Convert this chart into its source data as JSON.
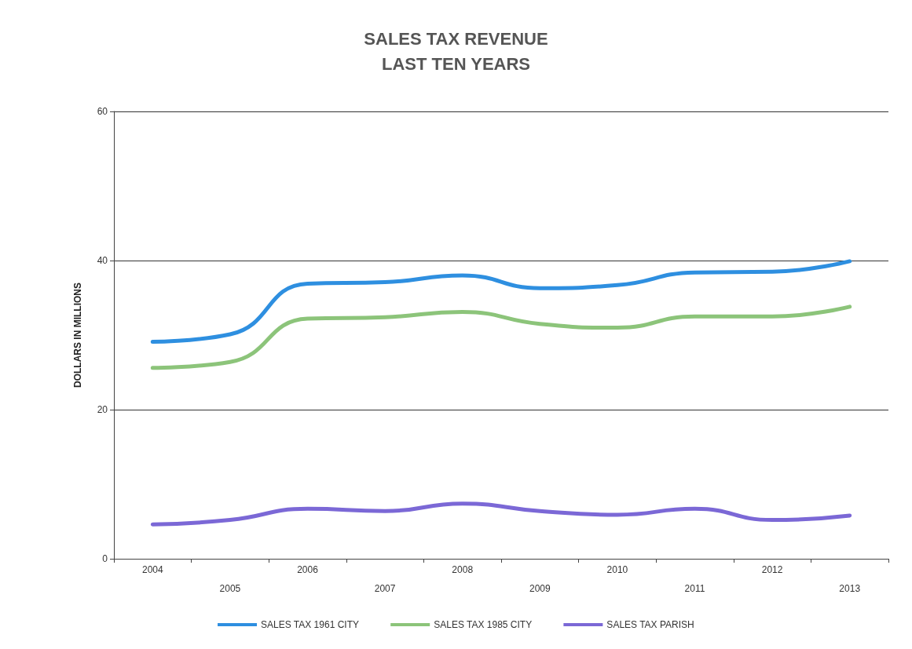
{
  "chart_data": {
    "type": "line",
    "title": "SALES TAX REVENUE\nLAST TEN YEARS",
    "ylabel": "DOLLARS IN MILLIONS",
    "categories": [
      "2004",
      "2005",
      "2006",
      "2007",
      "2008",
      "2009",
      "2010",
      "2011",
      "2012",
      "2013"
    ],
    "series": [
      {
        "name": "SALES TAX 1961 CITY",
        "color": "#2e8fe0",
        "values": [
          29.1,
          30.1,
          36.9,
          37.1,
          38.0,
          36.3,
          36.7,
          38.4,
          38.5,
          39.9
        ]
      },
      {
        "name": "SALES TAX 1985 CITY",
        "color": "#8cc47a",
        "values": [
          25.6,
          26.4,
          32.2,
          32.4,
          33.1,
          31.5,
          31.0,
          32.5,
          32.5,
          33.8
        ]
      },
      {
        "name": "SALES TAX PARISH",
        "color": "#7b68d6",
        "values": [
          4.6,
          5.2,
          6.7,
          6.4,
          7.4,
          6.4,
          5.9,
          6.7,
          5.2,
          5.8
        ]
      }
    ],
    "ylim": [
      0,
      60
    ],
    "yticks": [
      0,
      20,
      40,
      60
    ],
    "grid": "y",
    "legend": "bottom",
    "marker": "none",
    "line_style": "solid"
  }
}
